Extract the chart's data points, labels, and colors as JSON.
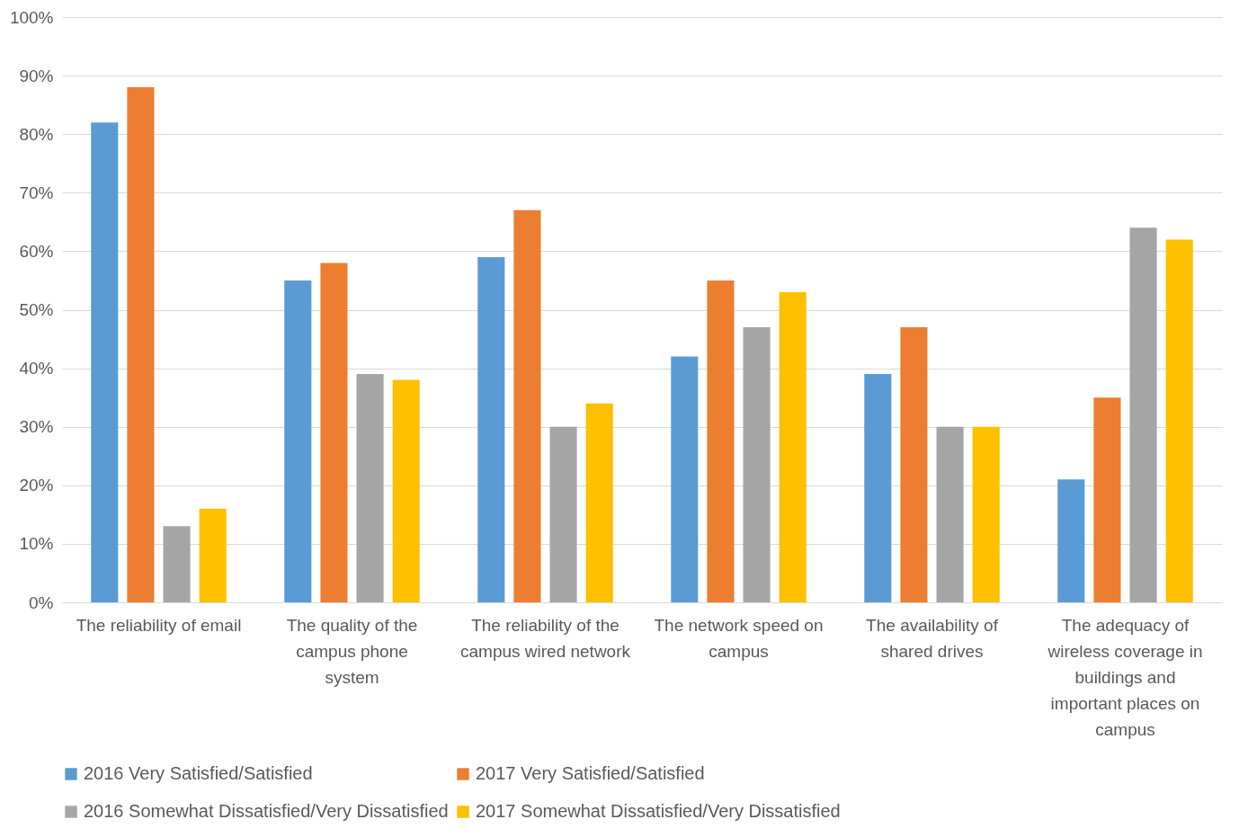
{
  "chart_data": {
    "type": "bar",
    "categories": [
      "The reliability of email",
      "The quality of the campus phone system",
      "The reliability of the campus wired network",
      "The network speed on campus",
      "The availability of shared drives",
      "The adequacy of wireless coverage in buildings and important places on campus"
    ],
    "series": [
      {
        "name": "2016 Very Satisfied/Satisfied",
        "color": "#5b9bd5",
        "values": [
          82,
          55,
          59,
          42,
          39,
          21
        ]
      },
      {
        "name": "2017 Very Satisfied/Satisfied",
        "color": "#ed7d31",
        "values": [
          88,
          58,
          67,
          55,
          47,
          35
        ]
      },
      {
        "name": "2016 Somewhat Dissatisfied/Very Dissatisfied",
        "color": "#a5a5a5",
        "values": [
          13,
          39,
          30,
          47,
          30,
          64
        ]
      },
      {
        "name": "2017 Somewhat Dissatisfied/Very Dissatisfied",
        "color": "#ffc000",
        "values": [
          16,
          38,
          34,
          53,
          30,
          62
        ]
      }
    ],
    "ylim": [
      0,
      100
    ],
    "yticks": [
      {
        "value": 0,
        "label": "0%"
      },
      {
        "value": 10,
        "label": "10%"
      },
      {
        "value": 20,
        "label": "20%"
      },
      {
        "value": 30,
        "label": "30%"
      },
      {
        "value": 40,
        "label": "40%"
      },
      {
        "value": 50,
        "label": "50%"
      },
      {
        "value": 60,
        "label": "60%"
      },
      {
        "value": 70,
        "label": "70%"
      },
      {
        "value": 80,
        "label": "80%"
      },
      {
        "value": 90,
        "label": "90%"
      },
      {
        "value": 100,
        "label": "100%"
      }
    ],
    "grid": "y",
    "legend": "bottom"
  }
}
